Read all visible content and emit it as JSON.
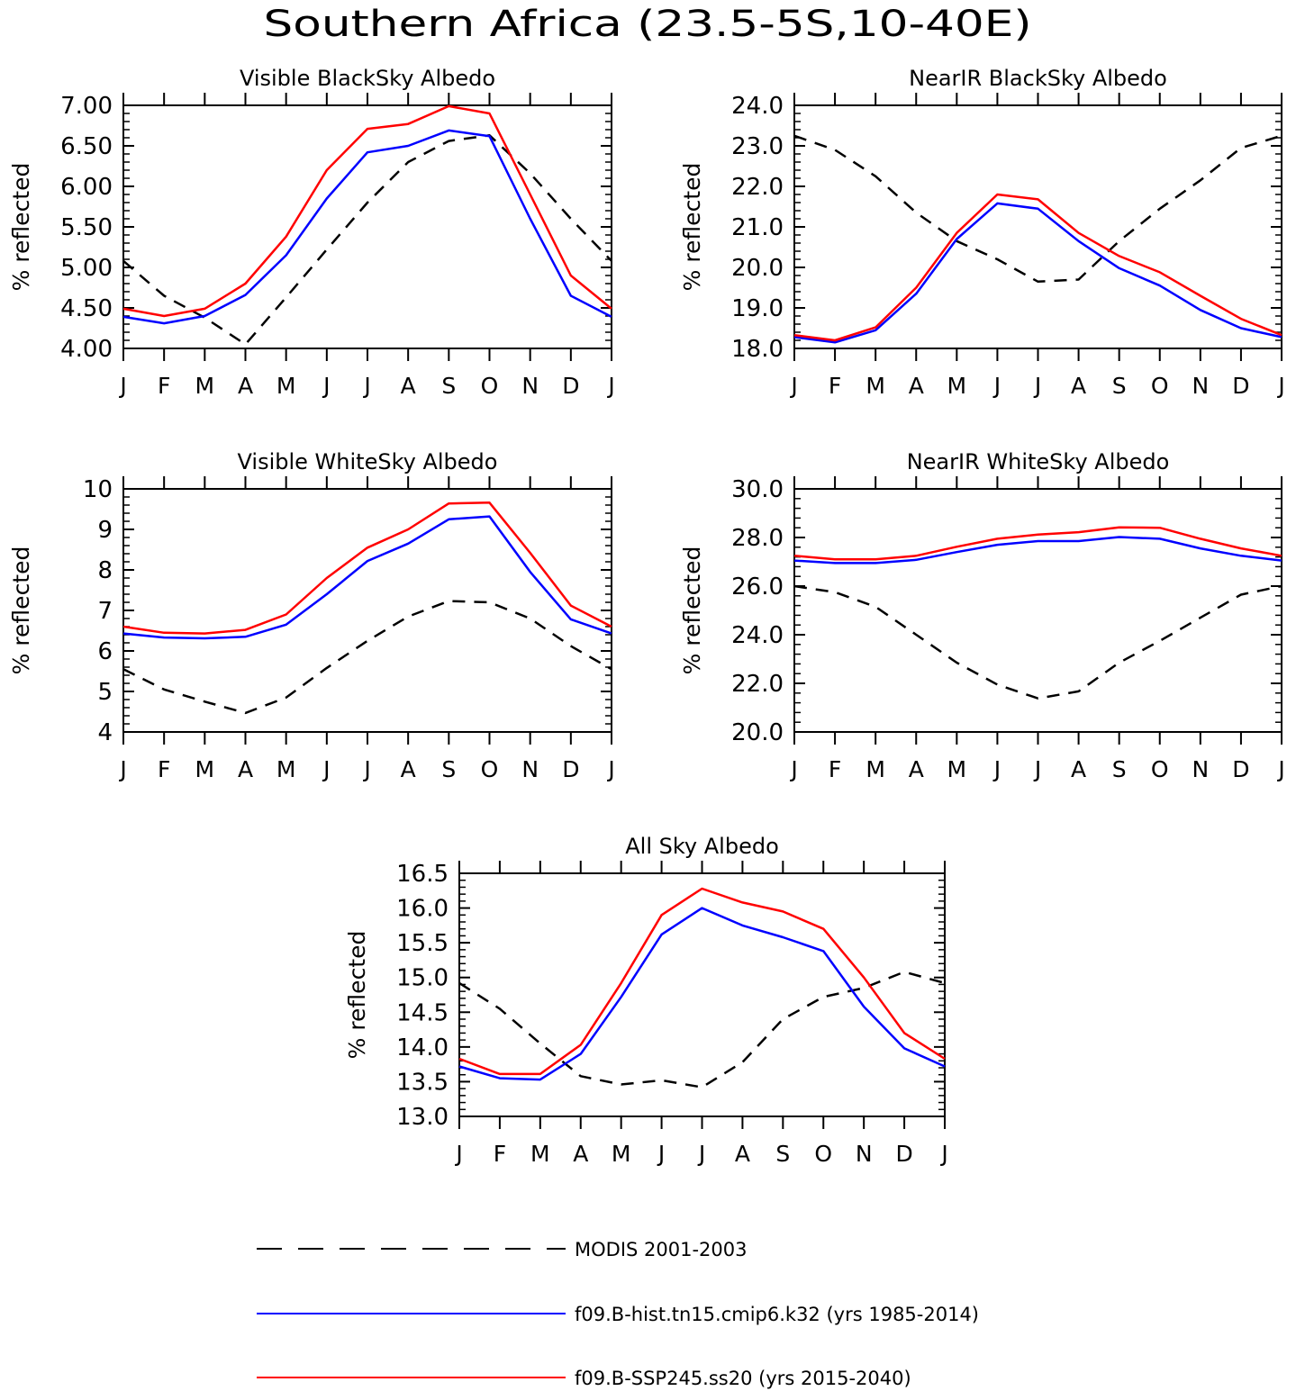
{
  "figure_title": "Southern Africa (23.5-5S,10-40E)",
  "colors": {
    "modis": "#000000",
    "hist": "#0000ff",
    "ssp": "#ff0000"
  },
  "legend": [
    {
      "key": "modis",
      "label": "MODIS 2001-2003",
      "style": "dashed"
    },
    {
      "key": "hist",
      "label": "f09.B-hist.tn15.cmip6.k32 (yrs 1985-2014)",
      "style": "solid"
    },
    {
      "key": "ssp",
      "label": "f09.B-SSP245.ss20 (yrs 2015-2040)",
      "style": "solid"
    }
  ],
  "chart_data": [
    {
      "type": "line",
      "title": "Visible BlackSky Albedo",
      "ylabel": "% reflected",
      "categories": [
        "J",
        "F",
        "M",
        "A",
        "M",
        "J",
        "J",
        "A",
        "S",
        "O",
        "N",
        "D",
        "J"
      ],
      "ylim": [
        4.0,
        7.0
      ],
      "yticks": [
        4.0,
        4.5,
        5.0,
        5.5,
        6.0,
        6.5,
        7.0
      ],
      "ytick_labels": [
        "4.00",
        "4.50",
        "5.00",
        "5.50",
        "6.00",
        "6.50",
        "7.00"
      ],
      "series": [
        {
          "key": "modis",
          "values": [
            5.08,
            4.65,
            4.38,
            4.05,
            4.63,
            5.22,
            5.8,
            6.3,
            6.56,
            6.63,
            6.16,
            5.6,
            5.08
          ]
        },
        {
          "key": "hist",
          "values": [
            4.39,
            4.31,
            4.4,
            4.66,
            5.15,
            5.85,
            6.42,
            6.5,
            6.69,
            6.62,
            5.6,
            4.65,
            4.39
          ]
        },
        {
          "key": "ssp",
          "values": [
            4.49,
            4.4,
            4.49,
            4.8,
            5.38,
            6.2,
            6.71,
            6.77,
            6.99,
            6.9,
            5.9,
            4.9,
            4.49
          ]
        }
      ]
    },
    {
      "type": "line",
      "title": "NearIR BlackSky Albedo",
      "ylabel": "% reflected",
      "categories": [
        "J",
        "F",
        "M",
        "A",
        "M",
        "J",
        "J",
        "A",
        "S",
        "O",
        "N",
        "D",
        "J"
      ],
      "ylim": [
        18.0,
        24.0
      ],
      "yticks": [
        18.0,
        19.0,
        20.0,
        21.0,
        22.0,
        23.0,
        24.0
      ],
      "ytick_labels": [
        "18.0",
        "19.0",
        "20.0",
        "21.0",
        "22.0",
        "23.0",
        "24.0"
      ],
      "series": [
        {
          "key": "modis",
          "values": [
            23.25,
            22.9,
            22.25,
            21.35,
            20.65,
            20.2,
            19.65,
            19.7,
            20.65,
            21.45,
            22.15,
            22.95,
            23.25
          ]
        },
        {
          "key": "hist",
          "values": [
            18.28,
            18.15,
            18.45,
            19.35,
            20.7,
            21.58,
            21.45,
            20.65,
            19.98,
            19.55,
            18.95,
            18.5,
            18.28
          ]
        },
        {
          "key": "ssp",
          "values": [
            18.33,
            18.2,
            18.52,
            19.5,
            20.85,
            21.8,
            21.68,
            20.85,
            20.28,
            19.88,
            19.3,
            18.73,
            18.33
          ]
        }
      ]
    },
    {
      "type": "line",
      "title": "Visible WhiteSky Albedo",
      "ylabel": "% reflected",
      "categories": [
        "J",
        "F",
        "M",
        "A",
        "M",
        "J",
        "J",
        "A",
        "S",
        "O",
        "N",
        "D",
        "J"
      ],
      "ylim": [
        4,
        10
      ],
      "yticks": [
        4,
        5,
        6,
        7,
        8,
        9,
        10
      ],
      "ytick_labels": [
        "4",
        "5",
        "6",
        "7",
        "8",
        "9",
        "10"
      ],
      "series": [
        {
          "key": "modis",
          "values": [
            5.55,
            5.05,
            4.75,
            4.47,
            4.85,
            5.58,
            6.25,
            6.85,
            7.23,
            7.2,
            6.8,
            6.12,
            5.55
          ]
        },
        {
          "key": "hist",
          "values": [
            6.43,
            6.33,
            6.31,
            6.35,
            6.65,
            7.4,
            8.22,
            8.65,
            9.25,
            9.32,
            7.95,
            6.78,
            6.43
          ]
        },
        {
          "key": "ssp",
          "values": [
            6.6,
            6.45,
            6.43,
            6.52,
            6.9,
            7.8,
            8.55,
            9.0,
            9.64,
            9.66,
            8.42,
            7.12,
            6.6
          ]
        }
      ]
    },
    {
      "type": "line",
      "title": "NearIR WhiteSky Albedo",
      "ylabel": "% reflected",
      "categories": [
        "J",
        "F",
        "M",
        "A",
        "M",
        "J",
        "J",
        "A",
        "S",
        "O",
        "N",
        "D",
        "J"
      ],
      "ylim": [
        20.0,
        30.0
      ],
      "yticks": [
        20.0,
        22.0,
        24.0,
        26.0,
        28.0,
        30.0
      ],
      "ytick_labels": [
        "20.0",
        "22.0",
        "24.0",
        "26.0",
        "28.0",
        "30.0"
      ],
      "series": [
        {
          "key": "modis",
          "values": [
            26.0,
            25.75,
            25.15,
            24.0,
            22.85,
            21.95,
            21.38,
            21.67,
            22.85,
            23.75,
            24.7,
            25.65,
            26.0
          ]
        },
        {
          "key": "hist",
          "values": [
            27.05,
            26.95,
            26.95,
            27.08,
            27.4,
            27.7,
            27.85,
            27.85,
            28.02,
            27.95,
            27.55,
            27.25,
            27.05
          ]
        },
        {
          "key": "ssp",
          "values": [
            27.25,
            27.1,
            27.1,
            27.25,
            27.62,
            27.95,
            28.12,
            28.22,
            28.42,
            28.4,
            27.95,
            27.55,
            27.25
          ]
        }
      ]
    },
    {
      "type": "line",
      "title": "All Sky Albedo",
      "ylabel": "% reflected",
      "categories": [
        "J",
        "F",
        "M",
        "A",
        "M",
        "J",
        "J",
        "A",
        "S",
        "O",
        "N",
        "D",
        "J"
      ],
      "ylim": [
        13.0,
        16.5
      ],
      "yticks": [
        13.0,
        13.5,
        14.0,
        14.5,
        15.0,
        15.5,
        16.0,
        16.5
      ],
      "ytick_labels": [
        "13.0",
        "13.5",
        "14.0",
        "14.5",
        "15.0",
        "15.5",
        "16.0",
        "16.5"
      ],
      "series": [
        {
          "key": "modis",
          "values": [
            14.92,
            14.55,
            14.05,
            13.58,
            13.46,
            13.52,
            13.42,
            13.78,
            14.4,
            14.72,
            14.85,
            15.08,
            14.92
          ]
        },
        {
          "key": "hist",
          "values": [
            13.72,
            13.55,
            13.53,
            13.9,
            14.72,
            15.62,
            16.0,
            15.75,
            15.58,
            15.38,
            14.58,
            13.98,
            13.72
          ]
        },
        {
          "key": "ssp",
          "values": [
            13.83,
            13.61,
            13.61,
            14.03,
            14.92,
            15.9,
            16.28,
            16.08,
            15.95,
            15.7,
            15.0,
            14.2,
            13.83
          ]
        }
      ]
    }
  ]
}
